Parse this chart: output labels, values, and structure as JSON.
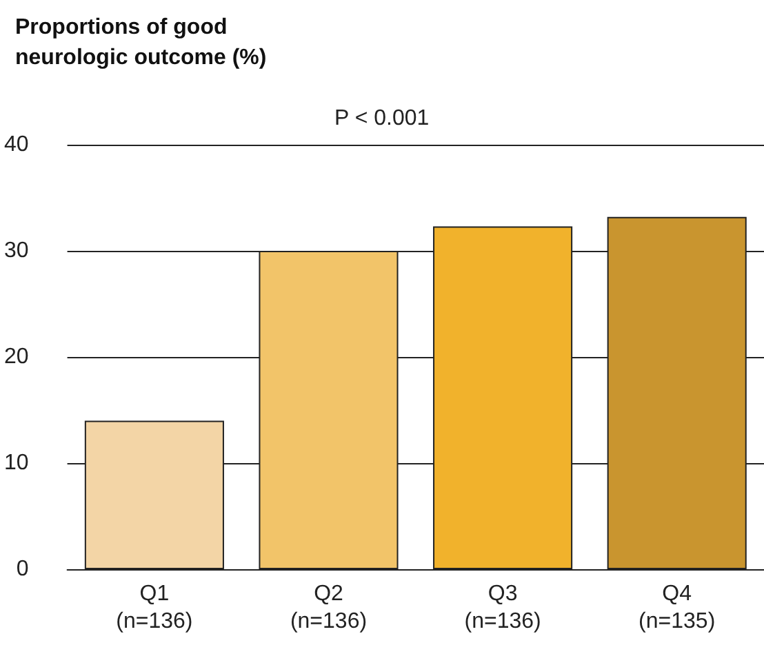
{
  "chart_data": {
    "type": "bar",
    "title": "Proportions of good\nneurologic outcome (%)",
    "annotations": [
      "P < 0.001"
    ],
    "categories": [
      "Q1\n(n=136)",
      "Q2\n(n=136)",
      "Q3\n(n=136)",
      "Q4\n(n=135)"
    ],
    "values": [
      14,
      30,
      32.3,
      33.2
    ],
    "colors": [
      "#f3d5a6",
      "#f2c469",
      "#f1b22c",
      "#c9952f"
    ],
    "ylim": [
      0,
      40
    ],
    "yticks": [
      0,
      10,
      20,
      30,
      40
    ],
    "grid": "y"
  }
}
